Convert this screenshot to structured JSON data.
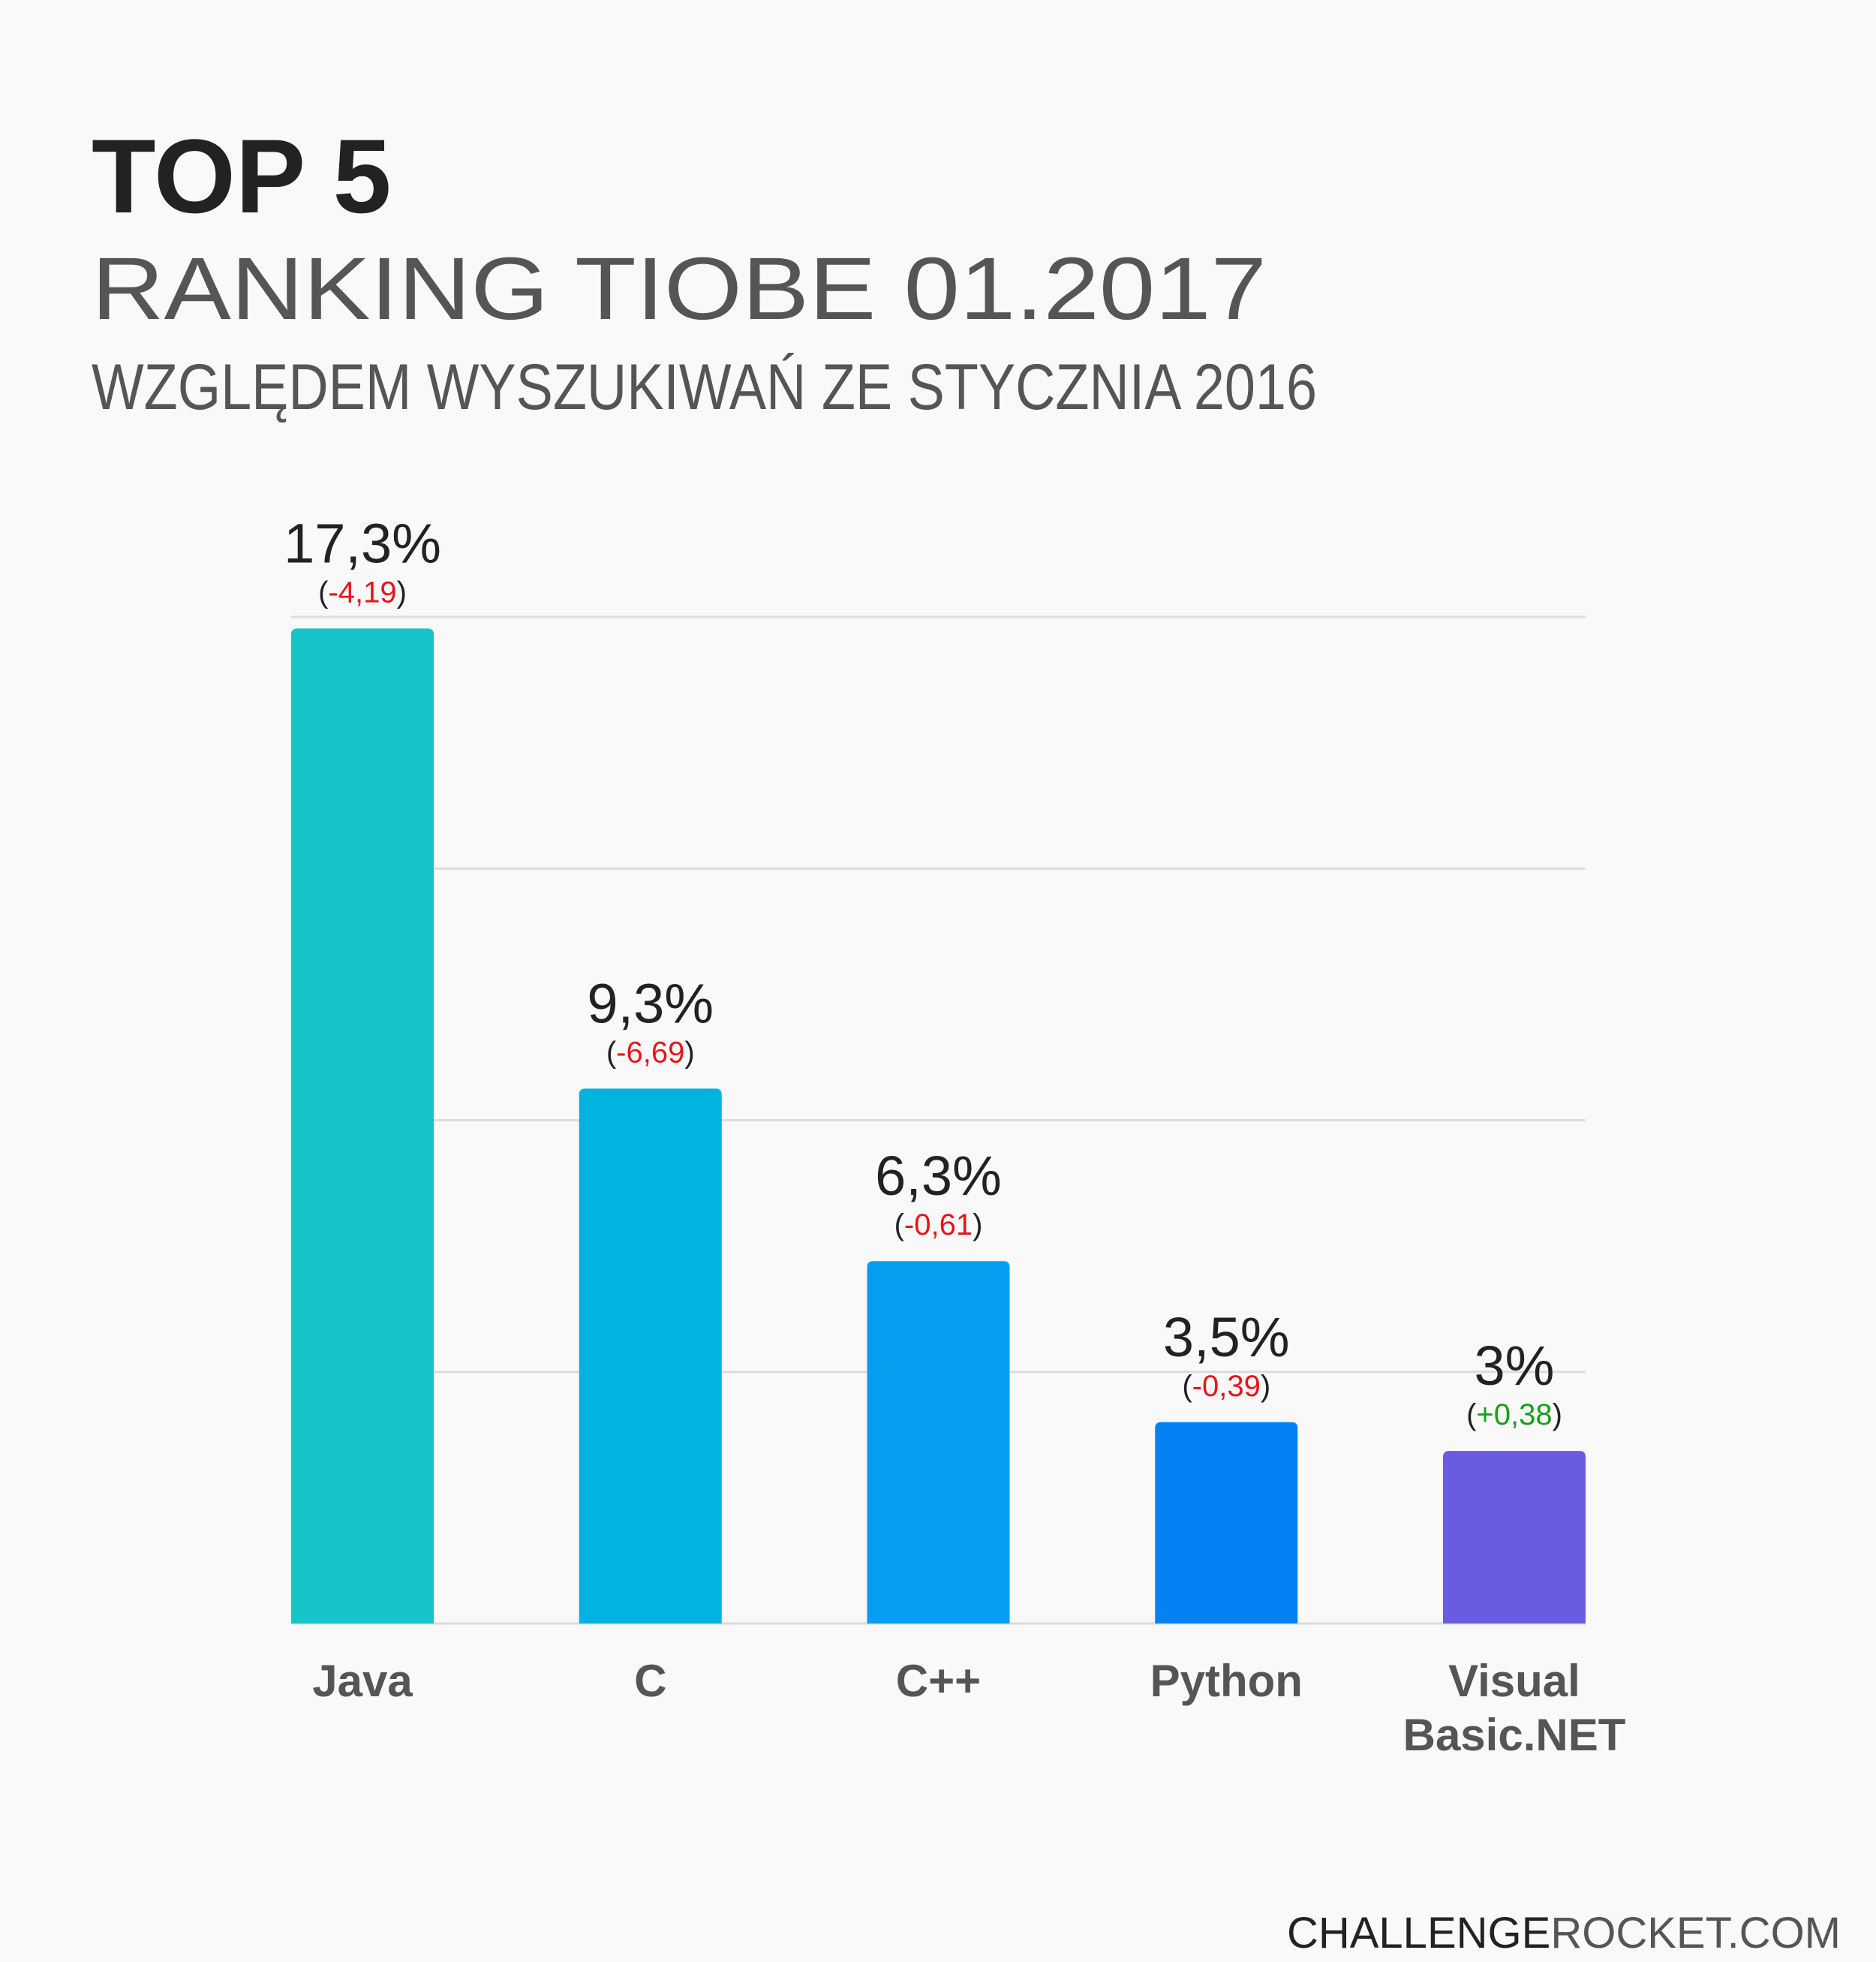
{
  "chart_data": {
    "type": "bar",
    "title": "TOP 5",
    "subtitle": "RANKING TIOBE 01.2017",
    "caption": "WZGLĘDEM WYSZUKIWAŃ ZE STYCZNIA 2016",
    "categories": [
      "Java",
      "C",
      "C++",
      "Python",
      "Visual Basic.NET"
    ],
    "values": [
      17.3,
      9.3,
      6.3,
      3.5,
      3
    ],
    "value_labels": [
      "17,3%",
      "9,3%",
      "6,3%",
      "3,5%",
      "3%"
    ],
    "changes": [
      -4.19,
      -6.69,
      -0.61,
      -0.39,
      0.38
    ],
    "change_labels": [
      "-4,19",
      "-6,69",
      "-0,61",
      "-0,39",
      "+0,38"
    ],
    "change_brackets": [
      "(",
      ")"
    ],
    "negative_color": "#e8141a",
    "positive_color": "#1a9e1a",
    "colors": [
      "#14c4c9",
      "#01b3e0",
      "#059ef0",
      "#0282f5",
      "#6a5ce0"
    ],
    "ylim": [
      0,
      17.5
    ],
    "yticks": [
      0,
      4.375,
      8.75,
      13.125,
      17.5
    ],
    "grid": true,
    "footer": [
      "CHALLENGE",
      "ROCKET.COM"
    ]
  }
}
